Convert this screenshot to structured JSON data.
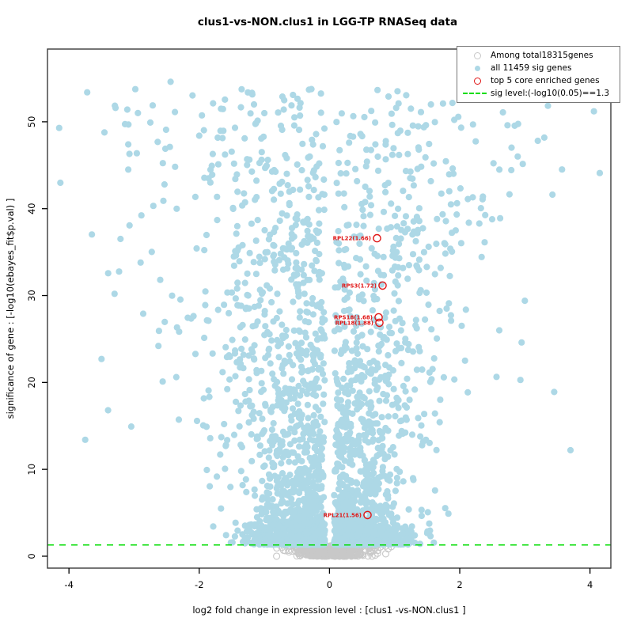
{
  "chart_data": {
    "type": "scatter",
    "title": "clus1-vs-NON.clus1 in LGG-TP RNASeq data",
    "xlabel": "log2 fold change in expression level : [clus1 -vs-NON.clus1 ]",
    "ylabel": "significance of gene : [-log10(ebayes_fit$p.val) ]",
    "xlim": [
      -4.33,
      4.32
    ],
    "ylim": [
      -1.37,
      58.37
    ],
    "xticks": [
      -4,
      -2,
      0,
      2,
      4
    ],
    "yticks": [
      0,
      10,
      20,
      30,
      40,
      50
    ],
    "grid": false,
    "legend_position": "top-right",
    "colors": {
      "nonsig": "#c8c8c8",
      "sig": "#ADD8E6",
      "core": "#e01717",
      "sig_line": "#00DD00"
    },
    "sig_line": {
      "y": 1.3,
      "color": "#00DD00",
      "style": "dashed",
      "label": "sig level:(-log10(0.05)==1.3"
    },
    "legend": [
      {
        "symbol": "open-circle",
        "color": "#c8c8c8",
        "label": "Among total18315genes"
      },
      {
        "symbol": "dot",
        "color": "#ADD8E6",
        "label": "all 11459 sig genes"
      },
      {
        "symbol": "open-circle",
        "color": "#e01717",
        "label": "top 5 core enriched genes"
      },
      {
        "symbol": "dashed-line",
        "color": "#00DD00",
        "label": "sig level:(-log10(0.05)==1.3"
      }
    ],
    "totals": {
      "total_genes": 18315,
      "sig_genes": 11459,
      "core_genes": 5
    },
    "seed": 1337,
    "series": [
      {
        "name": "Among total18315genes",
        "marker": "open-circle",
        "color": "#c8c8c8",
        "generator": {
          "n": 520,
          "x_sigma": 0.27,
          "x_clip": 0.95,
          "y_max": 1.25,
          "y_pow": 1.25
        },
        "extra_points": [
          [
            -0.81,
            0.95
          ],
          [
            -0.6,
            1.15
          ],
          [
            0.5,
            1.1
          ],
          [
            0.6,
            0.95
          ],
          [
            0.68,
            1.2
          ],
          [
            0.78,
            1.05
          ],
          [
            0.86,
            1.15
          ],
          [
            0.95,
            1.1
          ],
          [
            0.56,
            0.7
          ],
          [
            0.46,
            0.5
          ],
          [
            0.72,
            1.18
          ],
          [
            0.64,
            1.08
          ],
          [
            -0.3,
            1.2
          ],
          [
            0.9,
            0.85
          ]
        ]
      },
      {
        "name": "all 11459 sig genes",
        "marker": "dot",
        "color": "#ADD8E6",
        "generator_main": {
          "n": 2600,
          "y_pow": 2.6,
          "y_base": 1.35,
          "y_span": 52.5,
          "x_min": 0.07,
          "sigma_base": 0.38,
          "sigma_slope": 0.022,
          "wide_frac": 0.06,
          "wide_mult": 1.7,
          "x_clip": 4.15
        },
        "generator_bottom": {
          "n": 650,
          "y_base": 1.32,
          "y_sigma": 1.35,
          "x_min": 0.1,
          "x_sigma": 0.55,
          "x_clip": 2.6
        },
        "outlier_points": [
          [
            4.06,
            51.2
          ],
          [
            -2.44,
            54.6
          ],
          [
            -3.09,
            47.4
          ],
          [
            -2.52,
            46.9
          ],
          [
            -2.0,
            48.4
          ],
          [
            1.05,
            48.7
          ],
          [
            2.89,
            46.0
          ],
          [
            -3.09,
            44.5
          ],
          [
            -1.8,
            43.9
          ],
          [
            2.2,
            41.3
          ],
          [
            2.62,
            38.9
          ],
          [
            -3.3,
            30.2
          ],
          [
            3.0,
            29.4
          ],
          [
            -3.5,
            22.7
          ],
          [
            3.45,
            18.9
          ],
          [
            -3.75,
            13.4
          ],
          [
            3.7,
            12.2
          ],
          [
            -3.4,
            16.8
          ],
          [
            2.95,
            24.6
          ],
          [
            -2.9,
            33.8
          ],
          [
            1.6,
            45.2
          ],
          [
            -2.55,
            40.9
          ]
        ]
      },
      {
        "name": "top 5 core enriched genes",
        "marker": "open-circle",
        "color": "#e01717",
        "points": [
          {
            "gene": "RPL22",
            "label": "RPL22(1.66)",
            "x": 0.73,
            "y": 36.6
          },
          {
            "gene": "RPS3",
            "label": "RPS3(1.72)",
            "x": 0.815,
            "y": 31.15
          },
          {
            "gene": "RPS18",
            "label": "RPS18(1.68)",
            "x": 0.754,
            "y": 27.5
          },
          {
            "gene": "RPL18",
            "label": "RPL18(1.88)",
            "x": 0.766,
            "y": 26.87
          },
          {
            "gene": "RPL21",
            "label": "RPL21(1.56)",
            "x": 0.584,
            "y": 4.74
          }
        ]
      }
    ]
  }
}
